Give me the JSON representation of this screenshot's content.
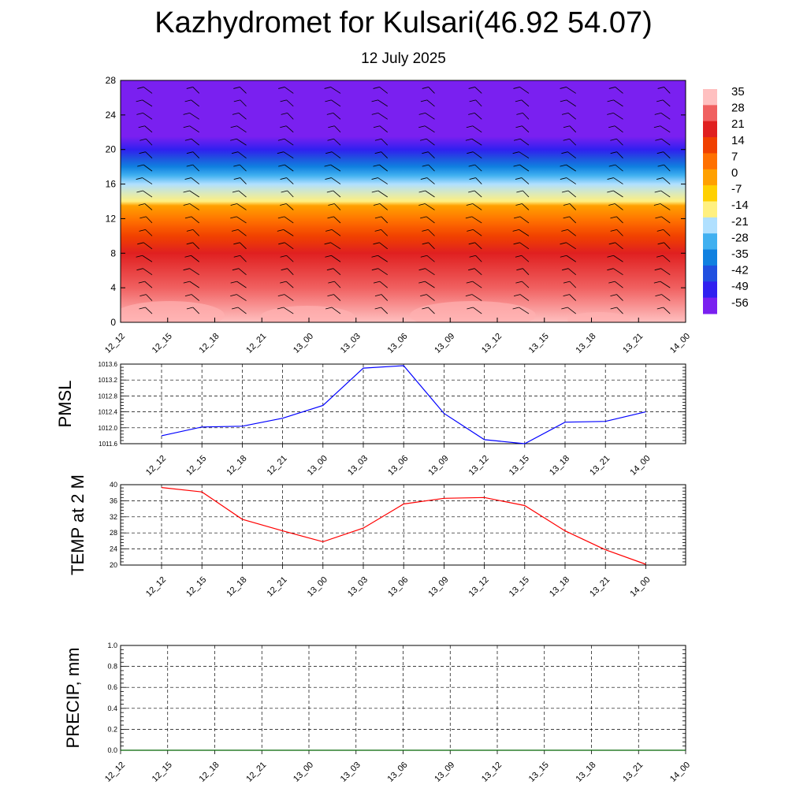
{
  "title": "Kazhydromet for Kulsari(46.92 54.07)",
  "subtitle": "12 July 2025",
  "time_labels": [
    "12_12",
    "12_15",
    "12_18",
    "12_21",
    "13_00",
    "13_03",
    "13_06",
    "13_09",
    "13_12",
    "13_15",
    "13_18",
    "13_21",
    "14_00"
  ],
  "chart_data": [
    {
      "type": "heatmap",
      "name": "upper-air temperature and wind cross-section",
      "x": [
        "12_12",
        "12_15",
        "12_18",
        "12_21",
        "13_00",
        "13_03",
        "13_06",
        "13_09",
        "13_12",
        "13_15",
        "13_18",
        "13_21",
        "14_00"
      ],
      "ylim": [
        0,
        28
      ],
      "yticks": [
        0,
        4,
        8,
        12,
        16,
        20,
        24,
        28
      ],
      "colorbar": {
        "labels": [
          35,
          28,
          21,
          14,
          7,
          0,
          -7,
          -14,
          -21,
          -28,
          -35,
          -42,
          -49,
          -56
        ],
        "colors": [
          "#ffc0c0",
          "#f06060",
          "#e02020",
          "#f04000",
          "#ff7000",
          "#ffa000",
          "#ffd000",
          "#fff080",
          "#b0e0ff",
          "#40b0f0",
          "#1080e0",
          "#2050e0",
          "#3020f0",
          "#7a20f0"
        ]
      },
      "profile": [
        {
          "level": 0,
          "temp": 35
        },
        {
          "level": 4,
          "temp": 28
        },
        {
          "level": 8,
          "temp": 21
        },
        {
          "level": 11,
          "temp": 10
        },
        {
          "level": 13.5,
          "temp": 0
        },
        {
          "level": 14,
          "temp": -14
        },
        {
          "level": 16,
          "temp": -21
        },
        {
          "level": 18,
          "temp": -35
        },
        {
          "level": 20,
          "temp": -49
        },
        {
          "level": 21.5,
          "temp": -56
        },
        {
          "level": 24,
          "temp": -60
        },
        {
          "level": 28,
          "temp": -60
        }
      ],
      "wind_barbs": true
    },
    {
      "type": "line",
      "ylabel": "PMSL",
      "x": [
        "12_12",
        "12_15",
        "12_18",
        "12_21",
        "13_00",
        "13_03",
        "13_06",
        "13_09",
        "13_12",
        "13_15",
        "13_18",
        "13_21",
        "14_00"
      ],
      "series": [
        {
          "color": "#0000ff",
          "values": [
            1011.8,
            1012.02,
            1012.04,
            1012.24,
            1012.56,
            1013.5,
            1013.56,
            1012.36,
            1011.7,
            1011.6,
            1012.14,
            1012.16,
            1012.4
          ]
        }
      ],
      "ylim": [
        1011.6,
        1013.6
      ],
      "yticks": [
        1011.6,
        1012.0,
        1012.4,
        1012.8,
        1013.2,
        1013.6
      ],
      "ytick_labels": [
        "1011.6",
        "1012.0",
        "1012.4",
        "1012.8",
        "1013.2",
        "1013.6"
      ],
      "grid": true
    },
    {
      "type": "line",
      "ylabel": "TEMP at 2 M",
      "x": [
        "12_12",
        "12_15",
        "12_18",
        "12_21",
        "13_00",
        "13_03",
        "13_06",
        "13_09",
        "13_12",
        "13_15",
        "13_18",
        "13_21",
        "14_00"
      ],
      "series": [
        {
          "color": "#ff0000",
          "values": [
            39.3,
            38.2,
            31.4,
            28.5,
            25.8,
            29.2,
            35.2,
            36.6,
            36.8,
            34.8,
            28.5,
            23.8,
            20.2
          ]
        }
      ],
      "ylim": [
        20,
        40
      ],
      "yticks": [
        20,
        24,
        28,
        32,
        36,
        40
      ],
      "ytick_labels": [
        "20",
        "24",
        "28",
        "32",
        "36",
        "40"
      ],
      "grid": true
    },
    {
      "type": "line",
      "ylabel": "PRECIP, mm",
      "x": [
        "12_12",
        "12_15",
        "12_18",
        "12_21",
        "13_00",
        "13_03",
        "13_06",
        "13_09",
        "13_12",
        "13_15",
        "13_18",
        "13_21",
        "14_00"
      ],
      "series": [
        {
          "color": "#006400",
          "values": [
            0,
            0,
            0,
            0,
            0,
            0,
            0,
            0,
            0,
            0,
            0,
            0,
            0
          ]
        }
      ],
      "ylim": [
        0,
        1.0
      ],
      "yticks": [
        0,
        0.2,
        0.4,
        0.6,
        0.8,
        1.0
      ],
      "ytick_labels": [
        "0.0",
        "0.2",
        "0.4",
        "0.6",
        "0.8",
        "1.0"
      ],
      "grid": true
    }
  ]
}
